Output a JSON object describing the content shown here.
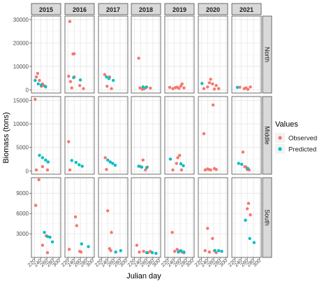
{
  "chart_data": {
    "type": "scatter",
    "facet_columns": [
      "2015",
      "2016",
      "2017",
      "2018",
      "2019",
      "2020",
      "2021"
    ],
    "facet_rows": [
      "North",
      "Middle",
      "South"
    ],
    "xlabel": "Julian day",
    "ylabel": "Biomass (tons)",
    "x_ticks": [
      220,
      240,
      260,
      280,
      300
    ],
    "xlim": [
      210,
      305
    ],
    "y_ticks": {
      "North": [
        0,
        10000,
        20000,
        30000
      ],
      "Middle": [
        0,
        5000,
        10000,
        15000
      ],
      "South": [
        3000,
        6000,
        9000
      ]
    },
    "ylim": {
      "North": [
        -1400,
        31500
      ],
      "Middle": [
        -700,
        15800
      ],
      "South": [
        -500,
        11300
      ]
    },
    "legend": {
      "title": "Values",
      "entries": [
        {
          "name": "Observed",
          "color": "#F8766D"
        },
        {
          "name": "Predicted",
          "color": "#00BFC4"
        }
      ],
      "position": "right"
    },
    "grid": true,
    "series": [
      {
        "name": "Observed",
        "color": "#F8766D",
        "panels": {
          "North|2015": [
            [
              226,
              5500
            ],
            [
              230,
              7000
            ],
            [
              236,
              4000
            ],
            [
              242,
              1500
            ],
            [
              246,
              2500
            ],
            [
              250,
              1800
            ],
            [
              256,
              1200
            ]
          ],
          "North|2016": [
            [
              222,
              5800
            ],
            [
              226,
              29200
            ],
            [
              236,
              15300
            ],
            [
              240,
              15400
            ],
            [
              228,
              3500
            ],
            [
              232,
              800
            ],
            [
              240,
              5500
            ],
            [
              258,
              1800
            ],
            [
              270,
              500
            ]
          ],
          "North|2017": [
            [
              230,
              6500
            ],
            [
              238,
              1500
            ],
            [
              246,
              5500
            ],
            [
              252,
              500
            ]
          ],
          "North|2018": [
            [
              234,
              13500
            ],
            [
              238,
              800
            ],
            [
              246,
              200
            ],
            [
              252,
              400
            ],
            [
              260,
              1200
            ],
            [
              272,
              700
            ]
          ],
          "North|2019": [
            [
              226,
              1000
            ],
            [
              236,
              500
            ],
            [
              244,
              900
            ],
            [
              250,
              1100
            ],
            [
              256,
              600
            ],
            [
              262,
              1600
            ],
            [
              266,
              2500
            ],
            [
              272,
              800
            ]
          ],
          "North|2020": [
            [
              228,
              500
            ],
            [
              240,
              1200
            ],
            [
              246,
              3000
            ],
            [
              250,
              4500
            ],
            [
              256,
              2500
            ],
            [
              262,
              300
            ],
            [
              268,
              1800
            ],
            [
              276,
              500
            ]
          ],
          "North|2021": [
            [
              236,
              1100
            ],
            [
              250,
              500
            ],
            [
              256,
              800
            ],
            [
              262,
              200
            ],
            [
              270,
              1200
            ]
          ],
          "Middle|2015": [
            [
              222,
              15200
            ],
            [
              226,
              200
            ],
            [
              246,
              900
            ],
            [
              262,
              200
            ]
          ],
          "Middle|2016": [
            [
              222,
              6200
            ],
            [
              226,
              200
            ]
          ],
          "Middle|2017": [
            [
              232,
              2800
            ],
            [
              236,
              300
            ]
          ],
          "Middle|2018": [
            [
              240,
              900
            ],
            [
              248,
              2300
            ],
            [
              256,
              200
            ],
            [
              262,
              800
            ]
          ],
          "Middle|2019": [
            [
              236,
              200
            ],
            [
              248,
              1600
            ],
            [
              252,
              2800
            ],
            [
              258,
              3300
            ],
            [
              264,
              200
            ]
          ],
          "Middle|2020": [
            [
              228,
              7900
            ],
            [
              232,
              200
            ],
            [
              240,
              400
            ],
            [
              244,
              300
            ],
            [
              250,
              200
            ],
            [
              258,
              14000
            ],
            [
              262,
              500
            ],
            [
              268,
              300
            ]
          ],
          "Middle|2021": [
            [
              246,
              4000
            ],
            [
              252,
              900
            ],
            [
              256,
              800
            ],
            [
              260,
              300
            ],
            [
              266,
              200
            ]
          ],
          "South|2015": [
            [
              224,
              7200
            ],
            [
              234,
              11000
            ],
            [
              246,
              1300
            ],
            [
              258,
              2700
            ],
            [
              262,
              200
            ]
          ],
          "South|2016": [
            [
              224,
              700
            ],
            [
              244,
              5500
            ],
            [
              248,
              4200
            ],
            [
              258,
              400
            ],
            [
              262,
              300
            ]
          ],
          "South|2017": [
            [
              240,
              6400
            ],
            [
              246,
              800
            ],
            [
              250,
              500
            ],
            [
              252,
              3200
            ]
          ],
          "South|2018": [
            [
              228,
              1300
            ],
            [
              236,
              300
            ],
            [
              250,
              400
            ],
            [
              264,
              200
            ],
            [
              272,
              400
            ]
          ],
          "South|2019": [
            [
              234,
              3200
            ],
            [
              242,
              400
            ],
            [
              250,
              700
            ],
            [
              256,
              400
            ],
            [
              266,
              300
            ],
            [
              272,
              200
            ]
          ],
          "South|2020": [
            [
              232,
              500
            ],
            [
              240,
              3800
            ],
            [
              246,
              300
            ],
            [
              256,
              2300
            ],
            [
              262,
              500
            ],
            [
              268,
              200
            ]
          ],
          "South|2021": [
            [
              260,
              6700
            ],
            [
              264,
              7500
            ],
            [
              270,
              5800
            ]
          ]
        }
      },
      {
        "name": "Predicted",
        "color": "#00BFC4",
        "panels": {
          "North|2015": [
            [
              222,
              4000
            ],
            [
              232,
              2500
            ],
            [
              242,
              2000
            ],
            [
              256,
              1400
            ]
          ],
          "North|2016": [
            [
              238,
              5200
            ],
            [
              260,
              4200
            ]
          ],
          "North|2017": [
            [
              236,
              5500
            ],
            [
              244,
              4800
            ],
            [
              258,
              4000
            ]
          ],
          "North|2018": [
            [
              248,
              1200
            ],
            [
              258,
              1000
            ]
          ],
          "North|2019": [],
          "North|2020": [
            [
              222,
              2700
            ]
          ],
          "North|2021": [
            [
              228,
              1000
            ]
          ],
          "Middle|2015": [
            [
              236,
              3300
            ],
            [
              246,
              2800
            ],
            [
              256,
              2300
            ],
            [
              264,
              1900
            ]
          ],
          "Middle|2016": [
            [
              232,
              2200
            ],
            [
              246,
              1800
            ],
            [
              256,
              1300
            ],
            [
              266,
              1000
            ]
          ],
          "Middle|2017": [
            [
              240,
              2300
            ],
            [
              248,
              1900
            ],
            [
              256,
              1600
            ],
            [
              264,
              1200
            ]
          ],
          "Middle|2018": [
            [
              234,
              1000
            ],
            [
              244,
              800
            ],
            [
              260,
              700
            ]
          ],
          "Middle|2019": [
            [
              228,
              2500
            ],
            [
              262,
              1500
            ],
            [
              270,
              1100
            ]
          ],
          "Middle|2020": [],
          "Middle|2021": [
            [
              232,
              1600
            ],
            [
              242,
              1400
            ],
            [
              262,
              500
            ]
          ],
          "South|2015": [
            [
              252,
              3200
            ],
            [
              262,
              2600
            ],
            [
              270,
              2500
            ],
            [
              278,
              1800
            ]
          ],
          "South|2016": [
            [
              264,
              1500
            ],
            [
              286,
              1100
            ]
          ],
          "South|2017": [
            [
              266,
              300
            ],
            [
              282,
              500
            ]
          ],
          "South|2018": [
            [
              260,
              200
            ],
            [
              278,
              200
            ],
            [
              290,
              100
            ]
          ],
          "South|2019": [
            [
              254,
              300
            ],
            [
              262,
              500
            ],
            [
              272,
              300
            ]
          ],
          "South|2020": [
            [
              264,
              500
            ],
            [
              276,
              500
            ],
            [
              286,
              400
            ]
          ],
          "South|2021": [
            [
              254,
              5000
            ],
            [
              268,
              2300
            ],
            [
              282,
              1700
            ]
          ]
        }
      }
    ]
  }
}
